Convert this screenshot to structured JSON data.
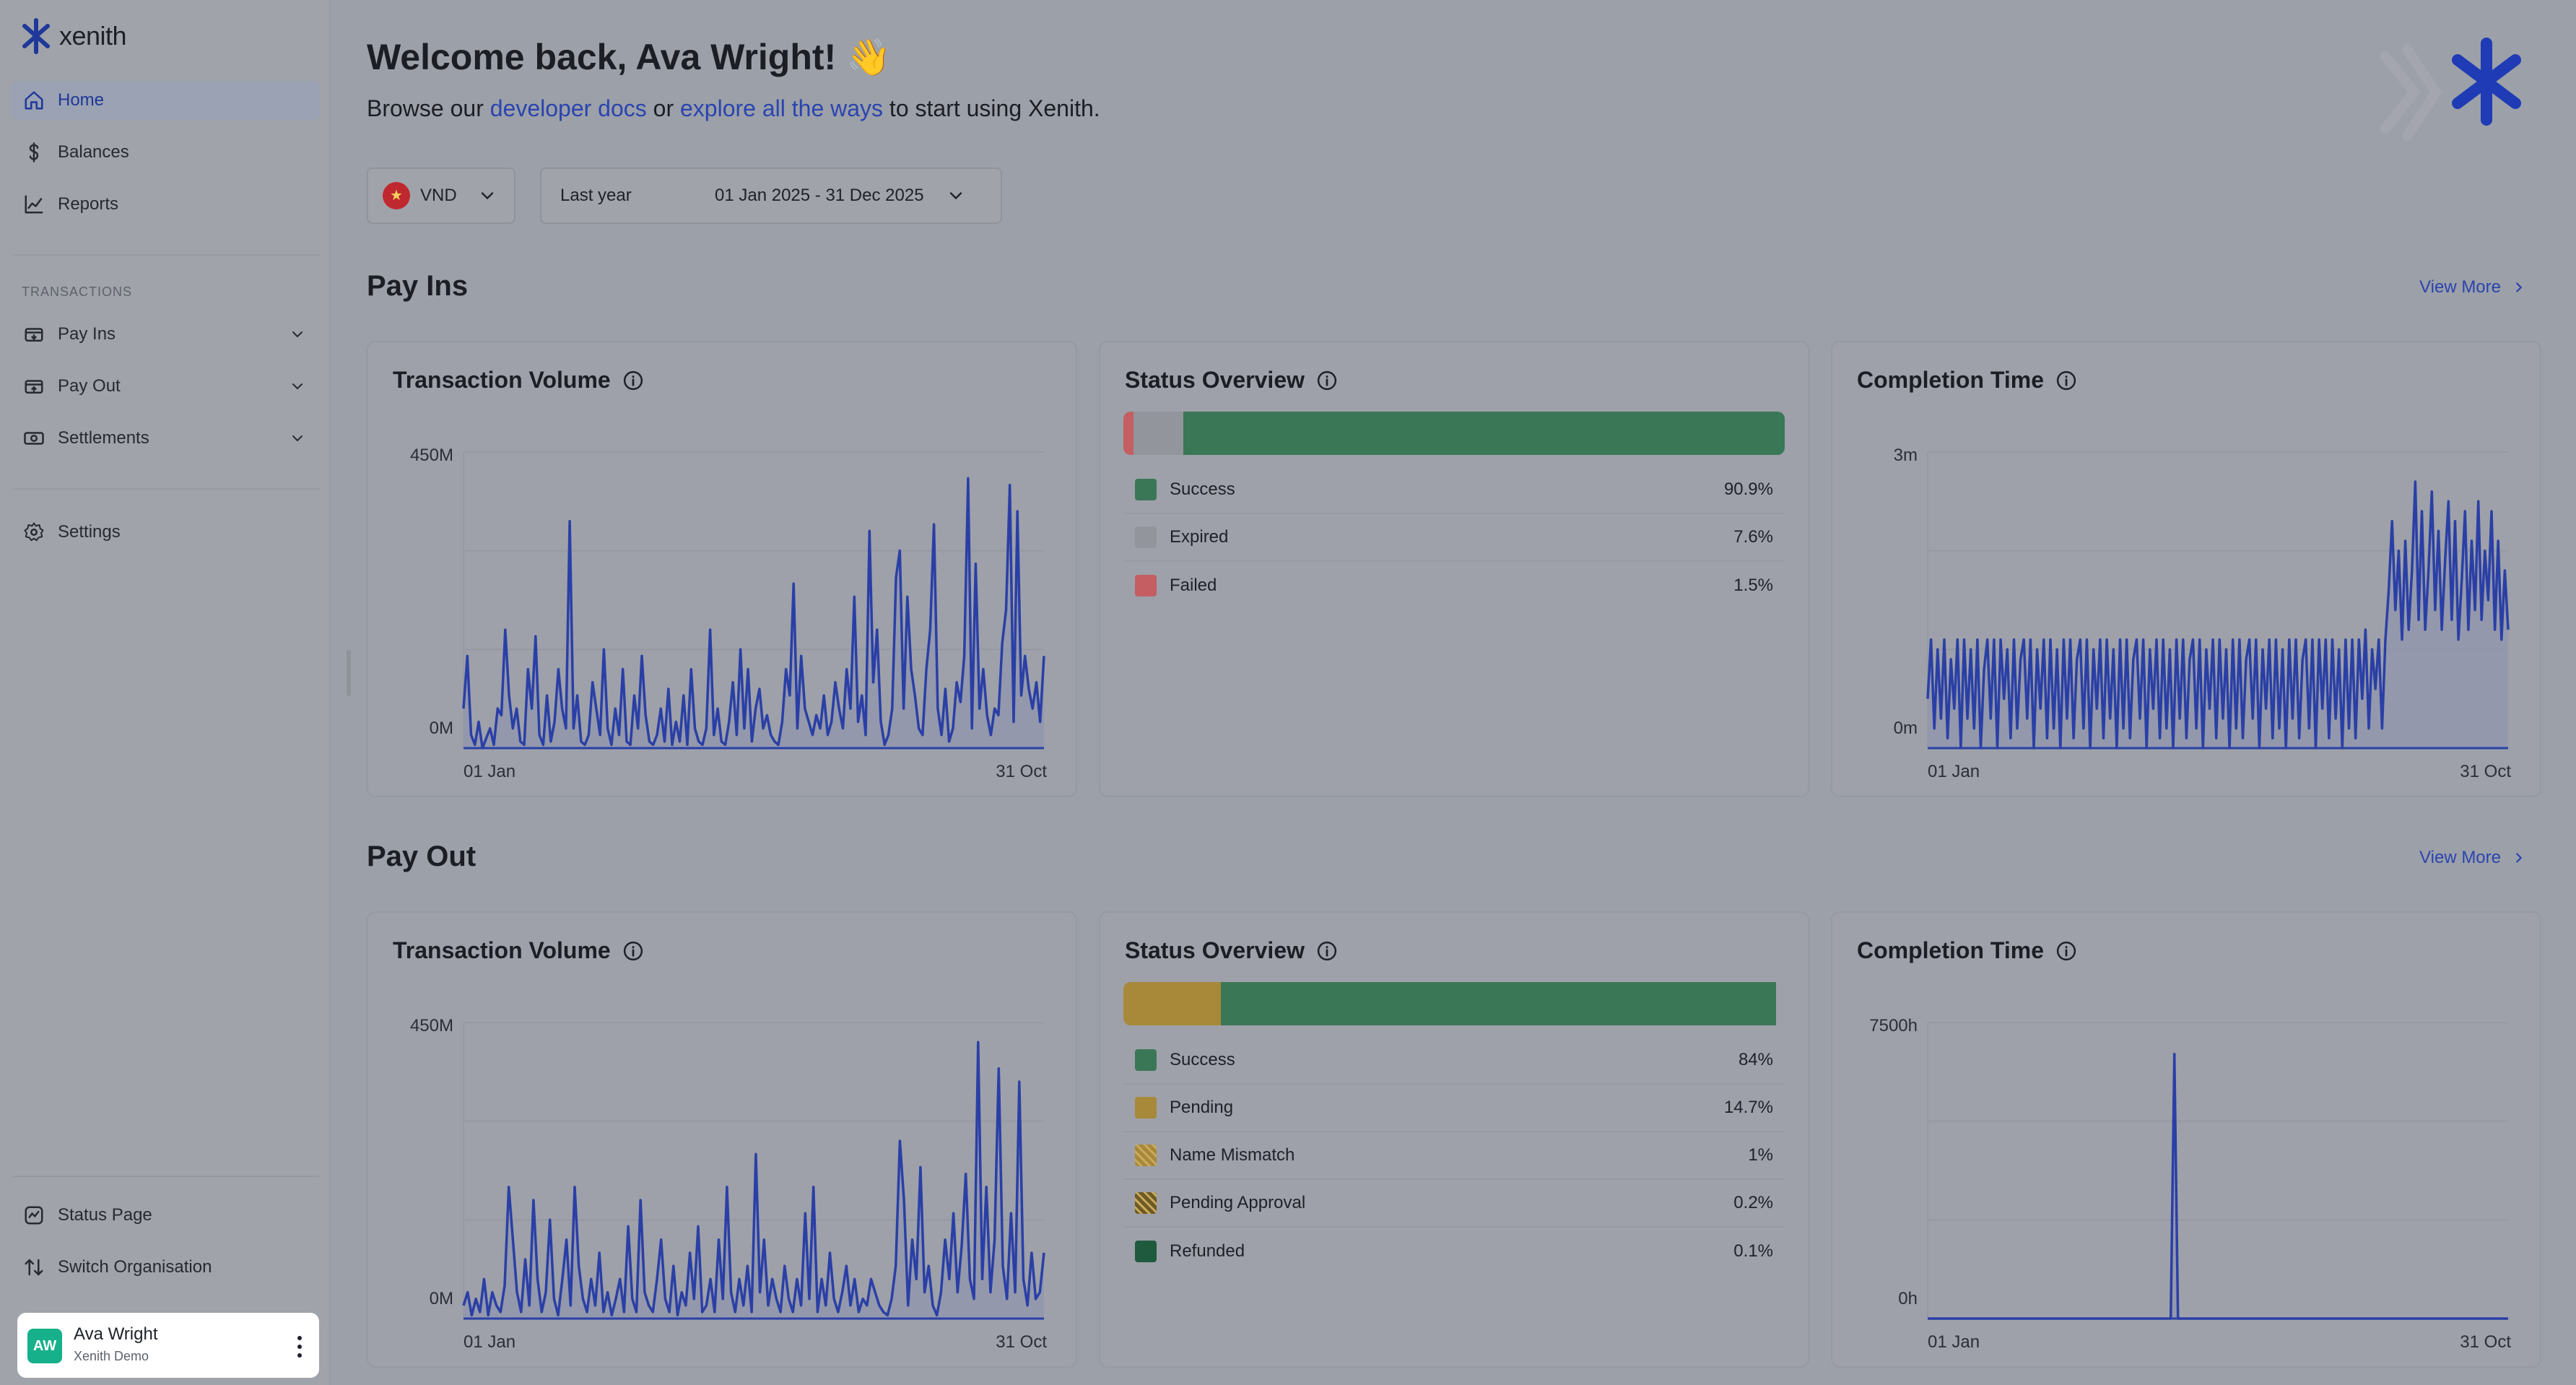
{
  "brand": {
    "name": "xenith"
  },
  "sidebar": {
    "nav": [
      {
        "label": "Home",
        "icon": "home-icon",
        "active": true
      },
      {
        "label": "Balances",
        "icon": "dollar-icon"
      },
      {
        "label": "Reports",
        "icon": "chart-line-icon"
      }
    ],
    "section_label": "TRANSACTIONS",
    "transactions": [
      {
        "label": "Pay Ins",
        "icon": "wallet-in-icon"
      },
      {
        "label": "Pay Out",
        "icon": "wallet-out-icon"
      },
      {
        "label": "Settlements",
        "icon": "banknote-icon"
      }
    ],
    "settings": {
      "label": "Settings",
      "icon": "gear-icon"
    },
    "footer": [
      {
        "label": "Status Page",
        "icon": "status-icon"
      },
      {
        "label": "Switch Organisation",
        "icon": "switch-icon"
      }
    ],
    "user": {
      "initials": "AW",
      "name": "Ava Wright",
      "org": "Xenith Demo"
    }
  },
  "header": {
    "welcome": "Welcome back, Ava Wright! 👋",
    "subtitle_pre": "Browse our ",
    "link1": "developer docs",
    "subtitle_mid": " or ",
    "link2": "explore all the ways",
    "subtitle_post": " to start using Xenith."
  },
  "filters": {
    "currency": "VND",
    "period": "Last year",
    "range": "01 Jan 2025 - 31 Dec 2025"
  },
  "view_more_label": "View More",
  "colors": {
    "line": "#2a3fa6",
    "fill": "#8f95ad",
    "success": "#3a7757",
    "expired": "#92959c",
    "failed": "#c45e62",
    "pending": "#a8893a",
    "refunded": "#1f5a3e"
  },
  "payins": {
    "title": "Pay Ins",
    "volume": {
      "title": "Transaction Volume",
      "chart_data": {
        "type": "area",
        "ymax_label": "450M",
        "ymin_label": "0M",
        "x_start": "01 Jan",
        "x_end": "31 Oct",
        "ylim": [
          0,
          450
        ],
        "values": [
          60,
          140,
          20,
          5,
          40,
          0,
          15,
          30,
          5,
          60,
          50,
          180,
          80,
          30,
          60,
          10,
          5,
          120,
          60,
          170,
          20,
          5,
          80,
          10,
          40,
          120,
          60,
          30,
          345,
          30,
          80,
          10,
          5,
          20,
          100,
          60,
          20,
          150,
          30,
          5,
          60,
          20,
          120,
          10,
          5,
          80,
          30,
          140,
          50,
          10,
          5,
          20,
          60,
          10,
          90,
          5,
          40,
          10,
          80,
          5,
          120,
          30,
          10,
          5,
          30,
          180,
          20,
          60,
          10,
          5,
          40,
          100,
          20,
          150,
          30,
          120,
          10,
          60,
          90,
          30,
          50,
          20,
          10,
          5,
          40,
          120,
          80,
          250,
          30,
          140,
          60,
          40,
          20,
          50,
          30,
          80,
          20,
          40,
          100,
          60,
          30,
          120,
          60,
          230,
          40,
          80,
          20,
          330,
          100,
          180,
          40,
          5,
          20,
          60,
          260,
          300,
          60,
          230,
          120,
          80,
          30,
          20,
          120,
          180,
          340,
          60,
          20,
          90,
          10,
          30,
          100,
          70,
          140,
          410,
          30,
          280,
          60,
          120,
          50,
          20,
          60,
          50,
          160,
          210,
          400,
          40,
          360,
          80,
          140,
          90,
          60,
          100,
          40,
          140
        ]
      }
    },
    "status": {
      "title": "Status Overview",
      "items": [
        {
          "label": "Success",
          "value": "90.9%",
          "pct": 90.9,
          "color": "#3a7757",
          "pattern": false
        },
        {
          "label": "Expired",
          "value": "7.6%",
          "pct": 7.6,
          "color": "#92959c",
          "pattern": false
        },
        {
          "label": "Failed",
          "value": "1.5%",
          "pct": 1.5,
          "color": "#c45e62",
          "pattern": false
        }
      ],
      "bar_order": [
        "Failed",
        "Expired",
        "Success"
      ]
    },
    "completion": {
      "title": "Completion Time",
      "chart_data": {
        "type": "area",
        "ymax_label": "3m",
        "ymin_label": "0m",
        "x_start": "01 Jan",
        "x_end": "31 Oct",
        "ylim": [
          0,
          3
        ],
        "values": [
          0.5,
          1.1,
          0.2,
          1.0,
          0.3,
          1.1,
          0.1,
          0.9,
          0.4,
          1.1,
          0.0,
          1.1,
          0.3,
          1.0,
          0.2,
          1.1,
          0.0,
          0.8,
          1.1,
          0.3,
          1.1,
          0.0,
          1.1,
          0.5,
          1.0,
          0.1,
          1.1,
          0.2,
          0.9,
          1.1,
          0.3,
          1.1,
          0.0,
          1.0,
          0.4,
          1.1,
          0.1,
          1.1,
          0.2,
          1.0,
          0.0,
          1.1,
          0.3,
          1.1,
          0.1,
          0.9,
          1.1,
          0.2,
          1.1,
          0.0,
          1.0,
          0.4,
          1.1,
          0.1,
          1.1,
          0.3,
          1.0,
          0.0,
          1.1,
          0.2,
          1.1,
          0.1,
          0.9,
          1.1,
          0.3,
          1.1,
          0.0,
          1.0,
          0.4,
          1.1,
          0.1,
          1.1,
          0.2,
          1.0,
          0.0,
          1.1,
          0.3,
          1.1,
          0.1,
          0.9,
          1.1,
          0.2,
          1.1,
          0.0,
          1.0,
          0.4,
          1.1,
          0.1,
          1.1,
          0.3,
          1.0,
          0.0,
          1.1,
          0.2,
          1.1,
          0.1,
          0.9,
          1.1,
          0.3,
          1.1,
          0.0,
          1.0,
          0.4,
          1.1,
          0.1,
          1.1,
          0.2,
          1.0,
          0.0,
          1.1,
          0.3,
          1.1,
          0.1,
          0.9,
          1.1,
          0.2,
          1.1,
          0.0,
          1.1,
          0.4,
          1.1,
          0.1,
          1.1,
          0.3,
          1.0,
          0.0,
          1.1,
          0.2,
          1.1,
          0.1,
          1.1,
          0.5,
          1.2,
          0.2,
          1.0,
          0.6,
          1.1,
          0.2,
          1.1,
          1.6,
          2.3,
          1.4,
          2.0,
          1.1,
          2.1,
          1.2,
          1.8,
          2.7,
          1.3,
          2.4,
          1.2,
          1.8,
          2.6,
          1.4,
          2.2,
          1.2,
          1.9,
          2.5,
          1.3,
          2.3,
          1.1,
          1.7,
          2.4,
          1.2,
          2.1,
          1.4,
          2.5,
          1.3,
          2.0,
          1.5,
          2.4,
          1.2,
          2.1,
          1.1,
          1.8,
          1.2
        ]
      }
    }
  },
  "payout": {
    "title": "Pay Out",
    "volume": {
      "title": "Transaction Volume",
      "chart_data": {
        "type": "area",
        "ymax_label": "450M",
        "ymin_label": "0M",
        "x_start": "01 Jan",
        "x_end": "31 Oct",
        "ylim": [
          0,
          450
        ],
        "values": [
          20,
          40,
          5,
          30,
          10,
          60,
          5,
          40,
          20,
          10,
          50,
          200,
          120,
          40,
          10,
          90,
          20,
          180,
          60,
          10,
          40,
          150,
          30,
          5,
          60,
          120,
          20,
          200,
          80,
          30,
          10,
          60,
          20,
          100,
          10,
          40,
          5,
          30,
          60,
          10,
          140,
          30,
          10,
          180,
          40,
          20,
          10,
          60,
          120,
          30,
          10,
          80,
          5,
          40,
          20,
          100,
          30,
          140,
          10,
          20,
          60,
          10,
          120,
          30,
          200,
          40,
          10,
          60,
          20,
          80,
          10,
          250,
          40,
          120,
          20,
          60,
          30,
          10,
          80,
          30,
          10,
          60,
          20,
          160,
          30,
          200,
          10,
          60,
          20,
          100,
          30,
          10,
          40,
          80,
          20,
          60,
          10,
          30,
          20,
          60,
          40,
          20,
          10,
          5,
          30,
          80,
          270,
          180,
          20,
          120,
          60,
          230,
          40,
          80,
          20,
          5,
          40,
          120,
          60,
          160,
          40,
          110,
          220,
          60,
          30,
          420,
          60,
          200,
          40,
          120,
          380,
          80,
          30,
          160,
          40,
          360,
          60,
          20,
          100,
          30,
          40,
          100
        ]
      }
    },
    "status": {
      "title": "Status Overview",
      "items": [
        {
          "label": "Success",
          "value": "84%",
          "pct": 84,
          "color": "#3a7757",
          "pattern": false
        },
        {
          "label": "Pending",
          "value": "14.7%",
          "pct": 14.7,
          "color": "#a8893a",
          "pattern": false
        },
        {
          "label": "Name Mismatch",
          "value": "1%",
          "pct": 1,
          "color": "#a8893a",
          "pattern": true
        },
        {
          "label": "Pending Approval",
          "value": "0.2%",
          "pct": 0.2,
          "color": "#8a6f2d",
          "pattern": true
        },
        {
          "label": "Refunded",
          "value": "0.1%",
          "pct": 0.1,
          "color": "#1f5a3e",
          "pattern": false
        }
      ],
      "bar_order": [
        "Pending",
        "Success"
      ]
    },
    "completion": {
      "title": "Completion Time",
      "chart_data": {
        "type": "area",
        "ymax_label": "7500h",
        "ymin_label": "0h",
        "x_start": "01 Jan",
        "x_end": "31 Oct",
        "ylim": [
          0,
          7500
        ],
        "values": [
          0,
          0,
          0,
          0,
          0,
          0,
          0,
          0,
          0,
          0,
          0,
          0,
          0,
          0,
          0,
          0,
          0,
          0,
          0,
          0,
          0,
          0,
          0,
          0,
          0,
          0,
          0,
          0,
          0,
          0,
          0,
          0,
          0,
          0,
          0,
          0,
          0,
          0,
          0,
          0,
          0,
          0,
          0,
          0,
          0,
          0,
          0,
          0,
          0,
          0,
          0,
          0,
          0,
          0,
          0,
          0,
          0,
          0,
          0,
          0,
          0,
          0,
          0,
          0,
          0,
          0,
          0,
          0,
          6700,
          0,
          0,
          0,
          0,
          0,
          0,
          0,
          0,
          0,
          0,
          0,
          0,
          0,
          0,
          0,
          0,
          0,
          0,
          0,
          0,
          0,
          0,
          0,
          0,
          0,
          0,
          0,
          0,
          0,
          0,
          0,
          0,
          0,
          0,
          0,
          0,
          0,
          0,
          0,
          0,
          0,
          0,
          0,
          0,
          0,
          0,
          0,
          0,
          0,
          0,
          0,
          0,
          0,
          0,
          0,
          0,
          0,
          0,
          0,
          0,
          0,
          0,
          0,
          0,
          0,
          0,
          0,
          0,
          0,
          0,
          0,
          0,
          0,
          0,
          0,
          0,
          0,
          0,
          0,
          0,
          0,
          0,
          0,
          0,
          0,
          0,
          0,
          0,
          0,
          0,
          0,
          0
        ]
      }
    }
  }
}
